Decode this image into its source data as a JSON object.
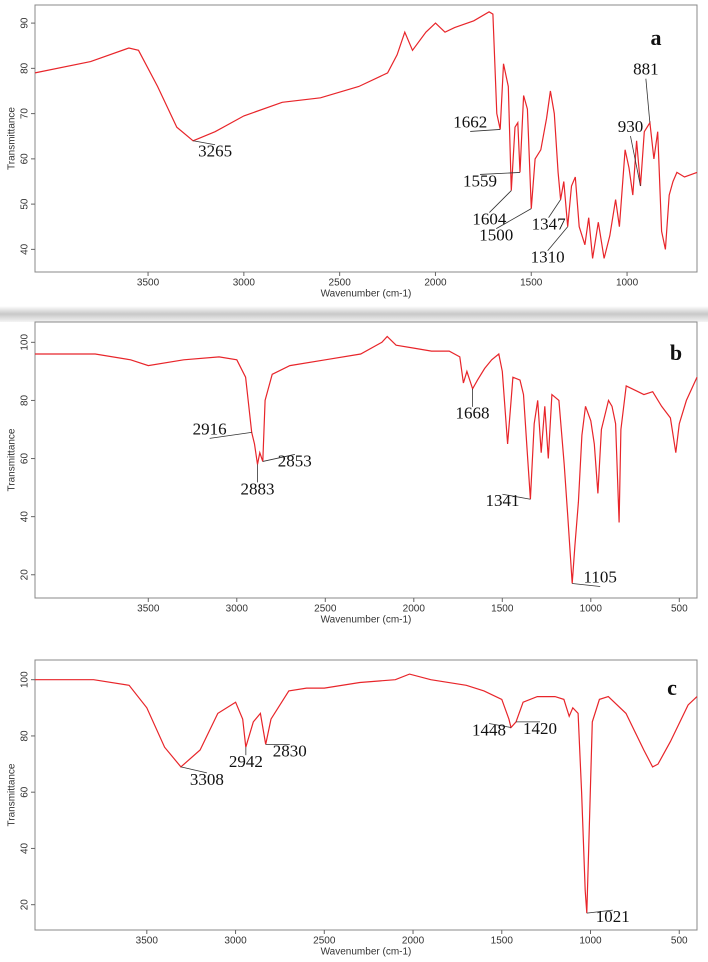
{
  "chart_data": [
    {
      "type": "line",
      "panel": "a",
      "xlabel": "Wavenumber (cm-1)",
      "ylabel": "Transmittance",
      "xlim": [
        4090,
        635
      ],
      "ylim": [
        35,
        94
      ],
      "xticks": [
        3500,
        3000,
        2500,
        2000,
        1500,
        1000
      ],
      "yticks": [
        40,
        50,
        60,
        70,
        80,
        90
      ],
      "x": [
        4090,
        3800,
        3600,
        3550,
        3450,
        3350,
        3265,
        3150,
        3000,
        2800,
        2600,
        2400,
        2250,
        2200,
        2160,
        2120,
        2050,
        2000,
        1950,
        1900,
        1800,
        1720,
        1700,
        1680,
        1662,
        1645,
        1620,
        1604,
        1585,
        1570,
        1559,
        1540,
        1520,
        1500,
        1480,
        1450,
        1420,
        1400,
        1380,
        1360,
        1347,
        1330,
        1310,
        1290,
        1270,
        1250,
        1220,
        1200,
        1180,
        1150,
        1120,
        1090,
        1060,
        1040,
        1010,
        990,
        970,
        950,
        930,
        910,
        881,
        860,
        840,
        820,
        800,
        780,
        760,
        740,
        700,
        635
      ],
      "series": [
        {
          "color": "#e8252a",
          "values": [
            79,
            81.5,
            84.5,
            84,
            76,
            67,
            64,
            66,
            69.5,
            72.5,
            73.5,
            76,
            79,
            83,
            88,
            84,
            88,
            90,
            88,
            89,
            90.5,
            92.5,
            92,
            70,
            66.5,
            81,
            76,
            53,
            67,
            68,
            57,
            74,
            71,
            49,
            60,
            62,
            69,
            75,
            70,
            57,
            51,
            55,
            45,
            54,
            56,
            45,
            41,
            47,
            38,
            46,
            38,
            43,
            51,
            45,
            62,
            58,
            52,
            64,
            54,
            66,
            68,
            60,
            66,
            44,
            40,
            52,
            55,
            57,
            56,
            57
          ]
        }
      ],
      "annotations": [
        {
          "label": "3265",
          "x": 3265,
          "y": 64
        },
        {
          "label": "1662",
          "x": 1662,
          "y": 66.5
        },
        {
          "label": "1559",
          "x": 1559,
          "y": 57
        },
        {
          "label": "1604",
          "x": 1604,
          "y": 53
        },
        {
          "label": "1500",
          "x": 1500,
          "y": 49
        },
        {
          "label": "1347",
          "x": 1347,
          "y": 51
        },
        {
          "label": "1310",
          "x": 1310,
          "y": 45
        },
        {
          "label": "930",
          "x": 930,
          "y": 54
        },
        {
          "label": "881",
          "x": 881,
          "y": 68
        }
      ]
    },
    {
      "type": "line",
      "panel": "b",
      "xlabel": "Wavenumber (cm-1)",
      "ylabel": "Transmittance",
      "xlim": [
        4140,
        400
      ],
      "ylim": [
        12,
        107
      ],
      "xticks": [
        3500,
        3000,
        2500,
        2000,
        1500,
        1000,
        500
      ],
      "yticks": [
        20,
        40,
        60,
        80,
        100
      ],
      "x": [
        4140,
        3800,
        3600,
        3500,
        3300,
        3100,
        3000,
        2950,
        2916,
        2900,
        2883,
        2870,
        2853,
        2840,
        2800,
        2700,
        2500,
        2300,
        2180,
        2150,
        2100,
        2000,
        1900,
        1800,
        1740,
        1720,
        1700,
        1668,
        1640,
        1600,
        1560,
        1520,
        1500,
        1470,
        1450,
        1440,
        1400,
        1380,
        1360,
        1341,
        1320,
        1300,
        1280,
        1260,
        1240,
        1220,
        1180,
        1150,
        1130,
        1105,
        1090,
        1070,
        1050,
        1030,
        1000,
        980,
        960,
        940,
        900,
        880,
        860,
        840,
        830,
        800,
        700,
        650,
        600,
        550,
        520,
        500,
        460,
        400
      ],
      "series": [
        {
          "color": "#e8252a",
          "values": [
            96,
            96,
            94,
            92,
            94,
            95,
            94,
            88,
            69,
            65,
            58,
            62,
            59,
            80,
            89,
            92,
            94,
            96,
            100,
            102,
            99,
            98,
            97,
            97,
            95,
            86,
            90,
            84,
            87,
            91,
            94,
            96,
            90,
            65,
            80,
            88,
            87,
            82,
            63,
            46,
            72,
            80,
            62,
            78,
            60,
            82,
            80,
            58,
            40,
            17,
            30,
            45,
            68,
            78,
            73,
            65,
            48,
            70,
            80,
            78,
            72,
            38,
            70,
            85,
            82,
            83,
            78,
            74,
            62,
            72,
            80,
            88
          ]
        }
      ],
      "annotations": [
        {
          "label": "2916",
          "x": 2916,
          "y": 69
        },
        {
          "label": "2883",
          "x": 2883,
          "y": 58
        },
        {
          "label": "2853",
          "x": 2853,
          "y": 59
        },
        {
          "label": "1668",
          "x": 1668,
          "y": 84
        },
        {
          "label": "1341",
          "x": 1341,
          "y": 46
        },
        {
          "label": "1105",
          "x": 1105,
          "y": 17
        }
      ]
    },
    {
      "type": "line",
      "panel": "c",
      "xlabel": "Wavenumber (cm-1)",
      "ylabel": "Transmittance",
      "xlim": [
        4130,
        400
      ],
      "ylim": [
        11,
        107
      ],
      "xticks": [
        3500,
        3000,
        2500,
        2000,
        1500,
        1000,
        500
      ],
      "yticks": [
        20,
        40,
        60,
        80,
        100
      ],
      "x": [
        4130,
        3800,
        3600,
        3500,
        3400,
        3308,
        3200,
        3100,
        3000,
        2960,
        2942,
        2900,
        2860,
        2830,
        2800,
        2700,
        2600,
        2500,
        2300,
        2100,
        2020,
        1900,
        1700,
        1600,
        1500,
        1460,
        1448,
        1420,
        1380,
        1300,
        1200,
        1150,
        1120,
        1100,
        1070,
        1050,
        1030,
        1021,
        1010,
        990,
        950,
        900,
        800,
        700,
        650,
        620,
        550,
        450,
        400
      ],
      "series": [
        {
          "color": "#e8252a",
          "values": [
            100,
            100,
            98,
            90,
            76,
            69,
            75,
            88,
            92,
            86,
            76,
            85,
            88,
            77,
            86,
            96,
            97,
            97,
            99,
            100,
            102,
            100,
            98,
            96,
            93,
            86,
            83,
            85,
            92,
            94,
            94,
            93,
            87,
            90,
            88,
            60,
            25,
            17,
            40,
            85,
            93,
            94,
            88,
            75,
            69,
            70,
            78,
            91,
            94
          ]
        }
      ],
      "annotations": [
        {
          "label": "3308",
          "x": 3308,
          "y": 69
        },
        {
          "label": "2942",
          "x": 2942,
          "y": 76
        },
        {
          "label": "2830",
          "x": 2830,
          "y": 77
        },
        {
          "label": "1448",
          "x": 1448,
          "y": 83
        },
        {
          "label": "1420",
          "x": 1420,
          "y": 85
        },
        {
          "label": "1021",
          "x": 1021,
          "y": 17
        }
      ]
    }
  ]
}
